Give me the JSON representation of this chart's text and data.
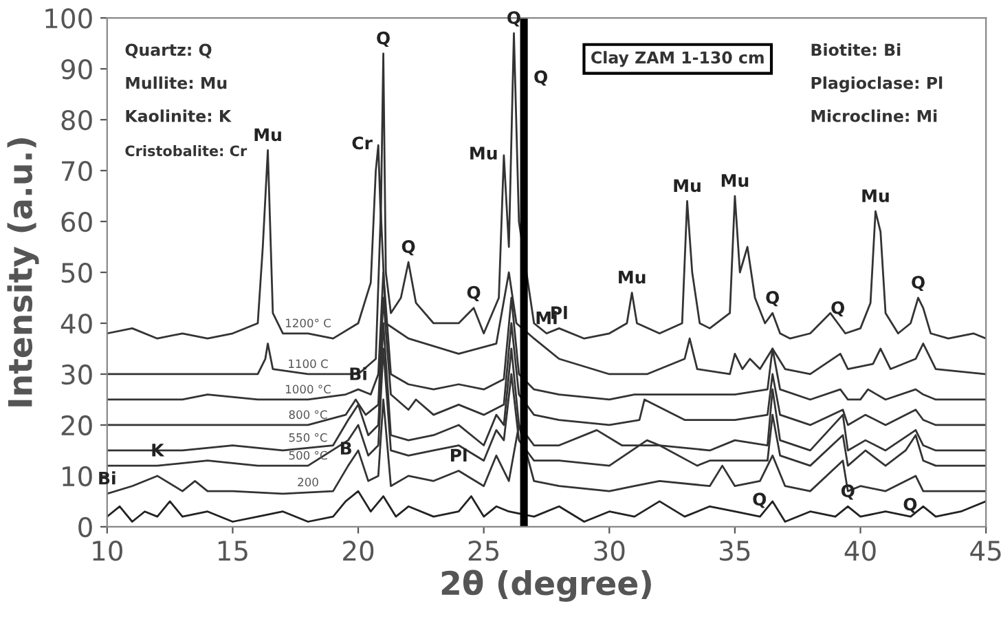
{
  "chart_data": {
    "type": "line",
    "xlabel": "2θ (degree)",
    "ylabel": "Intensity (a.u.)",
    "xlim": [
      10,
      45
    ],
    "xticks": [
      10,
      15,
      20,
      25,
      30,
      35,
      40,
      45
    ],
    "ylim": [
      0,
      100
    ],
    "yticks": [
      0,
      10,
      20,
      30,
      40,
      50,
      60,
      70,
      80,
      90,
      100
    ],
    "grid": false,
    "marker": "none",
    "line_style": "solid",
    "series": [
      {
        "name": "1200° C",
        "color": "#333333",
        "x": [
          10,
          11,
          12,
          13,
          14,
          15,
          16,
          16.2,
          16.4,
          16.6,
          17,
          18,
          19,
          20,
          20.5,
          20.7,
          20.8,
          20.9,
          21.0,
          21.1,
          21.3,
          21.7,
          22.0,
          22.3,
          23,
          24,
          24.6,
          25,
          25.6,
          25.8,
          26.0,
          26.2,
          26.4,
          27,
          27.5,
          28,
          29,
          30,
          30.7,
          30.9,
          31.1,
          32,
          32.9,
          33.1,
          33.3,
          33.6,
          34,
          34.8,
          35.0,
          35.2,
          35.5,
          35.8,
          36.2,
          36.5,
          36.8,
          37.2,
          38,
          38.8,
          39.1,
          39.4,
          40,
          40.4,
          40.6,
          40.8,
          41.0,
          41.5,
          42,
          42.3,
          42.5,
          42.8,
          43.5,
          44.5,
          45
        ],
        "values": [
          38,
          39,
          37,
          38,
          37,
          38,
          40,
          55,
          74,
          42,
          38,
          38,
          37,
          40,
          48,
          70,
          75,
          60,
          93,
          50,
          42,
          45,
          52,
          44,
          40,
          40,
          43,
          38,
          45,
          73,
          55,
          97,
          60,
          40,
          38,
          39,
          37,
          38,
          40,
          46,
          40,
          38,
          40,
          64,
          50,
          40,
          39,
          42,
          65,
          50,
          55,
          45,
          40,
          42,
          38,
          37,
          38,
          42,
          40,
          38,
          39,
          44,
          62,
          58,
          42,
          38,
          40,
          45,
          43,
          38,
          37,
          38,
          37
        ]
      },
      {
        "name": "1100 C",
        "color": "#333333",
        "x": [
          10,
          12,
          14,
          16,
          16.3,
          16.4,
          16.6,
          18,
          20,
          20.7,
          20.9,
          21.1,
          22,
          24,
          25.5,
          26.0,
          26.3,
          27,
          28,
          30,
          30.9,
          31.5,
          33,
          33.2,
          33.5,
          34.8,
          35.0,
          35.3,
          35.6,
          36,
          36.5,
          37,
          38,
          39.2,
          39.5,
          40.5,
          40.8,
          41.2,
          42.2,
          42.5,
          43,
          45
        ],
        "values": [
          30,
          30,
          30,
          30,
          33,
          36,
          31,
          30,
          30,
          33,
          62,
          40,
          37,
          34,
          36,
          50,
          40,
          37,
          33,
          30,
          30,
          30,
          33,
          37,
          31,
          30,
          34,
          31,
          33,
          31,
          35,
          31,
          30,
          34,
          31,
          32,
          35,
          31,
          33,
          36,
          31,
          30
        ]
      },
      {
        "name": "1000 °C",
        "color": "#333333",
        "x": [
          10,
          13,
          14,
          16,
          18,
          19.5,
          20,
          20.5,
          20.8,
          21.0,
          21.3,
          22,
          23,
          24,
          25,
          25.8,
          26.1,
          26.4,
          27,
          28,
          30,
          31,
          33,
          35,
          36.3,
          36.5,
          36.8,
          38,
          39.2,
          39.5,
          40,
          40.3,
          41,
          42.2,
          42.5,
          43,
          45
        ],
        "values": [
          25,
          25,
          26,
          25,
          25,
          26,
          27,
          26,
          30,
          50,
          30,
          28,
          27,
          28,
          27,
          29,
          45,
          30,
          27,
          26,
          25,
          26,
          26,
          26,
          27,
          35,
          27,
          25,
          27,
          25,
          25,
          27,
          25,
          27,
          26,
          25,
          25
        ]
      },
      {
        "name": "800 °C",
        "color": "#333333",
        "x": [
          10,
          14,
          16,
          18,
          19.5,
          19.9,
          20.3,
          20.8,
          21.0,
          21.3,
          22,
          22.3,
          23,
          24,
          25,
          25.8,
          26.1,
          26.4,
          27,
          28,
          30,
          31.2,
          31.4,
          33,
          35,
          36.3,
          36.5,
          36.8,
          38,
          39.3,
          39.5,
          40.2,
          41,
          42.2,
          42.5,
          43,
          45
        ],
        "values": [
          20,
          20,
          20,
          20,
          22,
          25,
          22,
          24,
          45,
          26,
          23,
          25,
          22,
          24,
          22,
          24,
          40,
          26,
          22,
          21,
          20,
          21,
          25,
          21,
          21,
          22,
          30,
          22,
          20,
          23,
          20,
          22,
          20,
          23,
          21,
          20,
          20
        ]
      },
      {
        "name": "550 °C",
        "color": "#333333",
        "x": [
          10,
          13,
          15,
          17,
          19,
          19.6,
          20,
          20.4,
          20.8,
          21.0,
          21.3,
          22,
          23,
          24,
          25,
          25.5,
          25.8,
          26.1,
          26.4,
          27,
          28,
          29.5,
          30.5,
          32,
          34,
          35,
          36.3,
          36.5,
          36.8,
          38,
          39.3,
          39.5,
          40.2,
          41,
          42.2,
          42.5,
          43,
          45
        ],
        "values": [
          15,
          15,
          16,
          15,
          16,
          21,
          24,
          18,
          20,
          40,
          18,
          17,
          18,
          20,
          16,
          22,
          20,
          35,
          20,
          16,
          16,
          19,
          16,
          16,
          15,
          17,
          16,
          27,
          17,
          15,
          22,
          15,
          17,
          15,
          19,
          16,
          15,
          15
        ]
      },
      {
        "name": "500 °C",
        "color": "#333333",
        "x": [
          10,
          12,
          14,
          16,
          18,
          19.6,
          20,
          20.4,
          20.8,
          21.0,
          21.3,
          22,
          23,
          24,
          25,
          25.5,
          25.8,
          26.1,
          26.4,
          27,
          28,
          30,
          31.5,
          32,
          33.5,
          34,
          35,
          36.3,
          36.5,
          36.8,
          38,
          39.3,
          39.5,
          40.2,
          41,
          41.8,
          42.2,
          42.5,
          43,
          45
        ],
        "values": [
          12,
          12,
          13,
          12,
          12,
          17,
          20,
          14,
          16,
          35,
          15,
          14,
          15,
          16,
          13,
          19,
          17,
          30,
          17,
          13,
          13,
          12,
          17,
          16,
          12,
          13,
          13,
          13,
          22,
          14,
          12,
          18,
          12,
          15,
          12,
          15,
          18,
          13,
          12,
          12
        ]
      },
      {
        "name": "200",
        "color": "#333333",
        "x": [
          10,
          11,
          12,
          13,
          13.5,
          14,
          15,
          17,
          19,
          19.6,
          20,
          20.4,
          20.8,
          21.0,
          21.3,
          22,
          23,
          24,
          25,
          25.5,
          26,
          26.4,
          27,
          28,
          30,
          31,
          32,
          34,
          34.5,
          35,
          36,
          36.5,
          37,
          38,
          39.3,
          39.5,
          40,
          41,
          42.2,
          42.5,
          43,
          45
        ],
        "values": [
          6.5,
          8,
          10,
          7,
          9,
          7,
          7,
          6.5,
          7,
          12,
          15,
          9,
          10,
          25,
          8,
          10,
          9,
          11,
          8,
          14,
          9,
          20,
          9,
          8,
          7,
          8,
          9,
          8,
          12,
          8,
          9,
          14,
          8,
          7,
          13,
          7,
          8,
          7,
          10,
          7,
          7,
          7
        ]
      },
      {
        "color": "#222222",
        "x": [
          10,
          10.5,
          11,
          11.5,
          12,
          12.5,
          13,
          14,
          15,
          16,
          17,
          18,
          19,
          19.5,
          20,
          20.5,
          21,
          21.5,
          22,
          23,
          24,
          24.5,
          25,
          25.5,
          26,
          27,
          28,
          29,
          30,
          31,
          32,
          33,
          34,
          35,
          36,
          36.5,
          37,
          38,
          39,
          39.5,
          40,
          41,
          42,
          42.5,
          43,
          44,
          45
        ],
        "values": [
          2,
          4,
          1,
          3,
          2,
          5,
          2,
          3,
          1,
          2,
          3,
          1,
          2,
          5,
          7,
          3,
          6,
          2,
          4,
          2,
          3,
          6,
          2,
          4,
          3,
          2,
          4,
          1,
          3,
          2,
          5,
          2,
          4,
          3,
          2,
          5,
          1,
          3,
          2,
          4,
          2,
          3,
          2,
          4,
          2,
          3,
          5
        ]
      }
    ],
    "ref_lines": [
      {
        "axis": "x",
        "value": 26.6,
        "color": "#000000"
      }
    ],
    "annotations": [
      "Quartz: Q",
      "Mullite: Mu",
      "Kaolinite: K",
      "Cristobalite: Cr",
      "Clay ZAM 1-130 cm",
      "Biotite: Bi",
      "Plagioclase: Pl",
      "Microcline: Mi",
      {
        "text": "Mu",
        "x": 16.4,
        "y": 74
      },
      {
        "text": "Q",
        "x": 21.0,
        "y": 93
      },
      {
        "text": "Cr",
        "x": 20.8,
        "y": 75
      },
      {
        "text": "Q",
        "x": 22.0,
        "y": 52
      },
      {
        "text": "Q",
        "x": 24.6,
        "y": 43
      },
      {
        "text": "Mu",
        "x": 25.8,
        "y": 73
      },
      {
        "text": "Q",
        "x": 26.2,
        "y": 97
      },
      {
        "text": "Q",
        "x": 26.6,
        "y": 88
      },
      {
        "text": "Mi",
        "x": 27.5,
        "y": 38
      },
      {
        "text": "Pl",
        "x": 28,
        "y": 39
      },
      {
        "text": "Mu",
        "x": 30.9,
        "y": 46
      },
      {
        "text": "Mu",
        "x": 33.1,
        "y": 64
      },
      {
        "text": "Mu",
        "x": 35.0,
        "y": 65
      },
      {
        "text": "Q",
        "x": 36.5,
        "y": 42
      },
      {
        "text": "Q",
        "x": 39.1,
        "y": 40
      },
      {
        "text": "Mu",
        "x": 40.6,
        "y": 62
      },
      {
        "text": "Q",
        "x": 42.3,
        "y": 45
      },
      {
        "text": "Bi",
        "x": 20,
        "y": 27
      },
      {
        "text": "K",
        "x": 12,
        "y": 12
      },
      {
        "text": "Bi",
        "x": 10,
        "y": 6.5
      },
      {
        "text": "B",
        "x": 20,
        "y": 15
      },
      {
        "text": "Pl",
        "x": 24,
        "y": 11
      },
      {
        "text": "Q",
        "x": 36.5,
        "y": 5
      },
      {
        "text": "Q",
        "x": 39.5,
        "y": 4
      },
      {
        "text": "Q",
        "x": 42.5,
        "y": 4
      }
    ]
  }
}
